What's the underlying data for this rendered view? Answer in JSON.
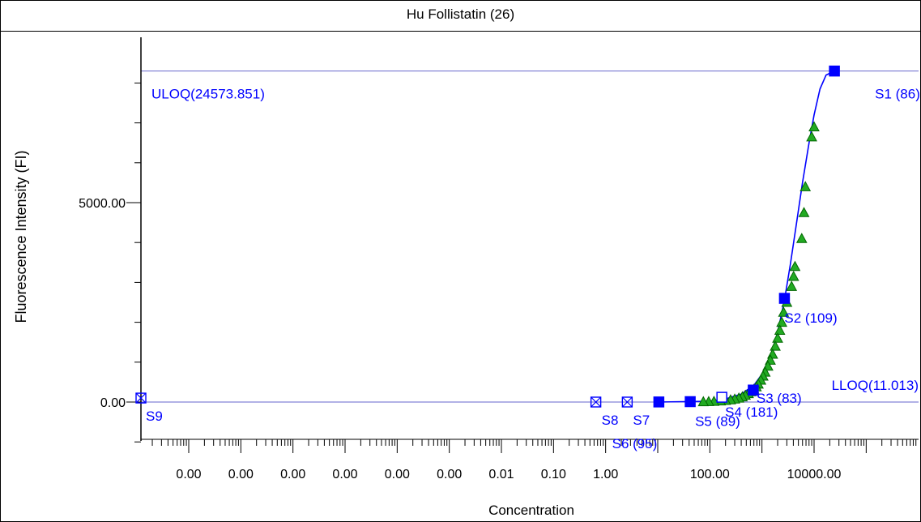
{
  "chart_data": {
    "type": "scatter",
    "title": "Hu Follistatin (26)",
    "xlabel": "Concentration",
    "ylabel": "Fluorescence Intensity (FI)",
    "x_scale": "log",
    "x_ticks": [
      {
        "value": 1e-08,
        "label": "0.00"
      },
      {
        "value": 1e-07,
        "label": "0.00"
      },
      {
        "value": 1e-06,
        "label": "0.00"
      },
      {
        "value": 1e-05,
        "label": "0.00"
      },
      {
        "value": 0.0001,
        "label": "0.00"
      },
      {
        "value": 0.001,
        "label": "0.00"
      },
      {
        "value": 0.01,
        "label": "0.01"
      },
      {
        "value": 0.1,
        "label": "0.10"
      },
      {
        "value": 1,
        "label": "1.00"
      },
      {
        "value": 100,
        "label": "100.00"
      },
      {
        "value": 10000,
        "label": "10000.00"
      }
    ],
    "y_ticks": [
      {
        "value": 0,
        "label": "0.00"
      },
      {
        "value": 5000,
        "label": "5000.00"
      }
    ],
    "reference_lines": [
      {
        "label": "ULOQ(24573.851)",
        "y": 8300
      },
      {
        "label": "LLOQ(11.013)",
        "y": 0
      }
    ],
    "standards_used": [
      {
        "label": "S1 (86)",
        "x": 24573.851,
        "y": 8300
      },
      {
        "label": "S2 (109)",
        "x": 2700,
        "y": 2600
      },
      {
        "label": "S3 (83)",
        "x": 680,
        "y": 300
      },
      {
        "label": "S4 (181)",
        "x": 170,
        "y": 120
      },
      {
        "label": "S5 (89)",
        "x": 42,
        "y": 10
      },
      {
        "label": "S6 (95)",
        "x": 10.5,
        "y": 2
      }
    ],
    "standards_excluded": [
      {
        "label": "S7",
        "x": 2.6,
        "y": 0
      },
      {
        "label": "S8",
        "x": 0.65,
        "y": 0
      },
      {
        "label": "S9",
        "x": 1e-09,
        "y": 100
      }
    ],
    "samples": [
      {
        "x": 10000,
        "y": 6900
      },
      {
        "x": 9000,
        "y": 6650
      },
      {
        "x": 6800,
        "y": 5400
      },
      {
        "x": 6400,
        "y": 4750
      },
      {
        "x": 5800,
        "y": 4100
      },
      {
        "x": 4300,
        "y": 3400
      },
      {
        "x": 4050,
        "y": 3150
      },
      {
        "x": 3700,
        "y": 2900
      },
      {
        "x": 3000,
        "y": 2500
      },
      {
        "x": 2600,
        "y": 2250
      },
      {
        "x": 2400,
        "y": 2000
      },
      {
        "x": 2200,
        "y": 1800
      },
      {
        "x": 2000,
        "y": 1600
      },
      {
        "x": 1800,
        "y": 1400
      },
      {
        "x": 1600,
        "y": 1200
      },
      {
        "x": 1450,
        "y": 1050
      },
      {
        "x": 1300,
        "y": 900
      },
      {
        "x": 1150,
        "y": 750
      },
      {
        "x": 1050,
        "y": 650
      },
      {
        "x": 950,
        "y": 550
      },
      {
        "x": 850,
        "y": 450
      },
      {
        "x": 780,
        "y": 380
      },
      {
        "x": 700,
        "y": 320
      },
      {
        "x": 620,
        "y": 260
      },
      {
        "x": 550,
        "y": 210
      },
      {
        "x": 480,
        "y": 170
      },
      {
        "x": 420,
        "y": 130
      },
      {
        "x": 360,
        "y": 100
      },
      {
        "x": 300,
        "y": 75
      },
      {
        "x": 250,
        "y": 55
      },
      {
        "x": 200,
        "y": 40
      },
      {
        "x": 160,
        "y": 28
      },
      {
        "x": 120,
        "y": 18
      },
      {
        "x": 95,
        "y": 12
      },
      {
        "x": 75,
        "y": 8
      }
    ],
    "curve": [
      {
        "x": 10,
        "y": 0
      },
      {
        "x": 100,
        "y": 20
      },
      {
        "x": 200,
        "y": 80
      },
      {
        "x": 400,
        "y": 200
      },
      {
        "x": 700,
        "y": 420
      },
      {
        "x": 1000,
        "y": 700
      },
      {
        "x": 1500,
        "y": 1200
      },
      {
        "x": 2000,
        "y": 1750
      },
      {
        "x": 2700,
        "y": 2550
      },
      {
        "x": 3500,
        "y": 3450
      },
      {
        "x": 4500,
        "y": 4400
      },
      {
        "x": 6000,
        "y": 5500
      },
      {
        "x": 8000,
        "y": 6500
      },
      {
        "x": 10000,
        "y": 7200
      },
      {
        "x": 13000,
        "y": 7850
      },
      {
        "x": 17000,
        "y": 8200
      },
      {
        "x": 24573.851,
        "y": 8300
      }
    ],
    "colors": {
      "curve": "#0000ff",
      "standards": "#0000ff",
      "samples_fill": "#22aa22",
      "samples_stroke": "#006600",
      "reference_line": "#6666cc",
      "label": "#0000ff"
    },
    "grid": false,
    "legend": "none"
  }
}
